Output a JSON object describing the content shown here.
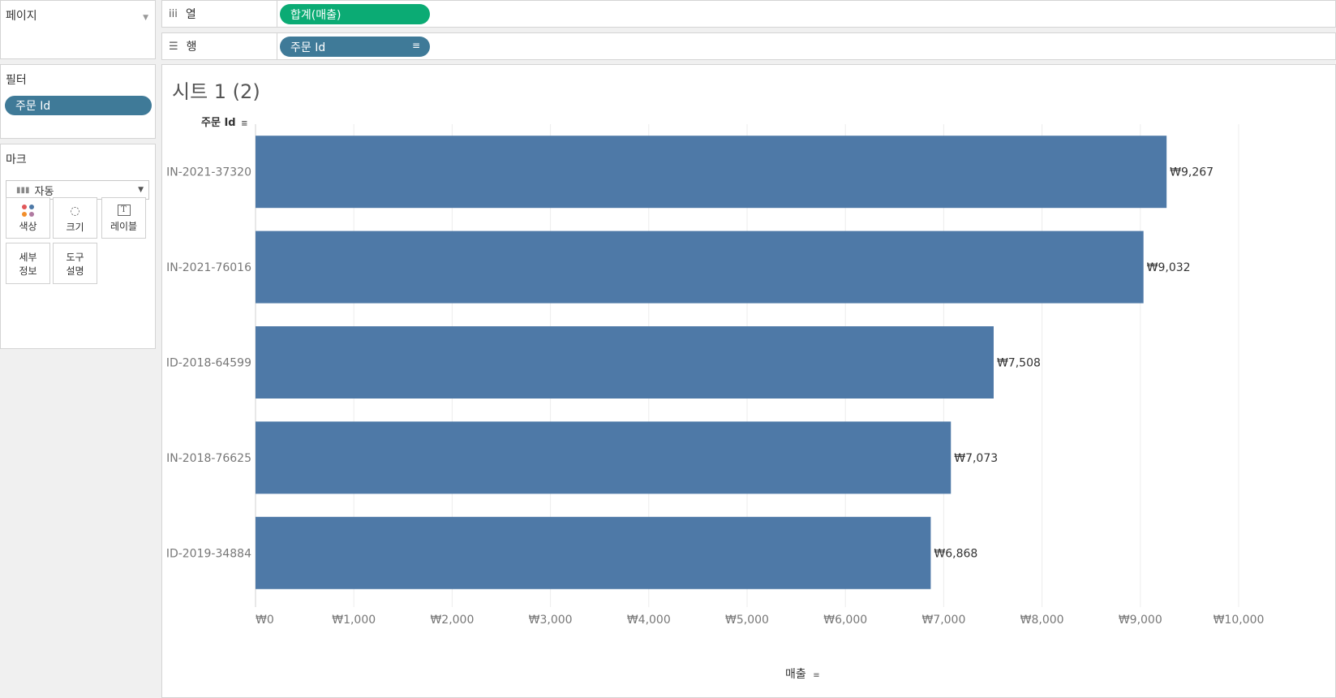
{
  "pages": {
    "title": "페이지"
  },
  "filters": {
    "title": "필터",
    "pills": [
      "주문 Id"
    ]
  },
  "marks": {
    "title": "마크",
    "type": "자동",
    "buttons": [
      {
        "label": "색상",
        "icon": "color-dots-icon"
      },
      {
        "label": "크기",
        "icon": "size-icon"
      },
      {
        "label": "레이블",
        "icon": "label-t-icon"
      },
      {
        "label": "세부\n정보",
        "line1": "세부",
        "line2": "정보"
      },
      {
        "label": "도구\n설명",
        "line1": "도구",
        "line2": "설명"
      }
    ]
  },
  "shelves": {
    "columns": {
      "icon": "iii",
      "label": "열",
      "pill": "합계(매출)"
    },
    "rows": {
      "icon": "☰",
      "label": "행",
      "pill": "주문 Id"
    }
  },
  "sheet": {
    "title": "시트 1 (2)",
    "row_header": "주문 Id"
  },
  "colors": {
    "bar": "#4e79a7",
    "pill_blue": "#3f7a98",
    "pill_green": "#0bab74"
  },
  "chart_data": {
    "type": "bar",
    "orientation": "horizontal",
    "categories": [
      "IN-2021-37320",
      "IN-2021-76016",
      "ID-2018-64599",
      "IN-2018-76625",
      "ID-2019-34884"
    ],
    "values": [
      9267,
      9032,
      7508,
      7073,
      6868
    ],
    "value_labels": [
      "₩9,267",
      "₩9,032",
      "₩7,508",
      "₩7,073",
      "₩6,868"
    ],
    "xlabel": "매출",
    "ylabel": "주문 Id",
    "xlim": [
      0,
      10000
    ],
    "xticks": [
      0,
      1000,
      2000,
      3000,
      4000,
      5000,
      6000,
      7000,
      8000,
      9000,
      10000
    ],
    "xtick_labels": [
      "₩0",
      "₩1,000",
      "₩2,000",
      "₩3,000",
      "₩4,000",
      "₩5,000",
      "₩6,000",
      "₩7,000",
      "₩8,000",
      "₩9,000",
      "₩10,000"
    ],
    "grid": true
  }
}
